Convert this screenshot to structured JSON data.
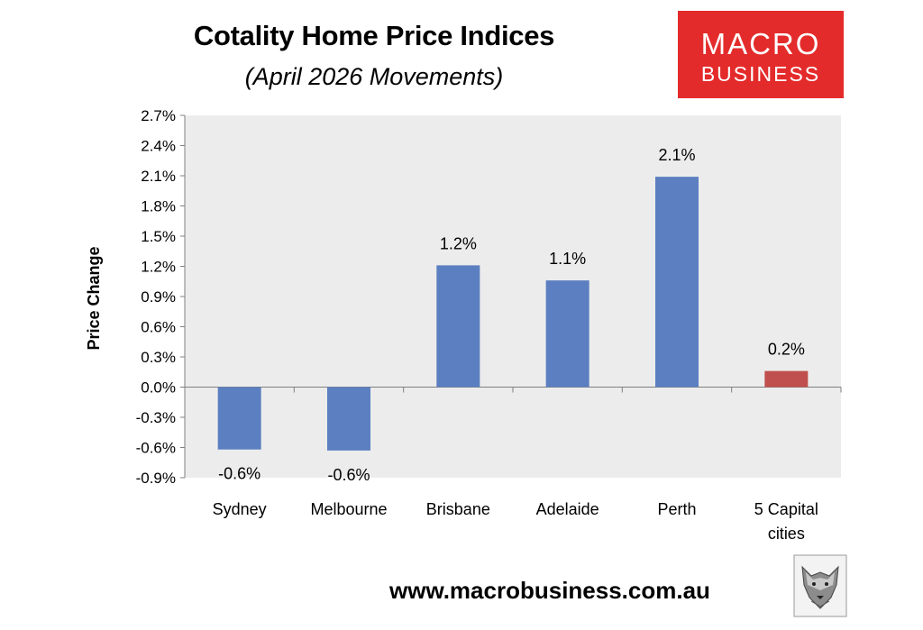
{
  "header": {
    "title": "Cotality Home Price Indices",
    "subtitle": "(April 2026 Movements)"
  },
  "logo": {
    "line1": "MACRO",
    "line2": "BUSINESS",
    "icon": "wolf-head-icon"
  },
  "footer": {
    "url": "www.macrobusiness.com.au"
  },
  "chart_data": {
    "type": "bar",
    "ylabel": "Price Change",
    "xlabel": "",
    "categories": [
      [
        "Sydney"
      ],
      [
        "Melbourne"
      ],
      [
        "Brisbane"
      ],
      [
        "Adelaide"
      ],
      [
        "Perth"
      ],
      [
        "5 Capital",
        "cities"
      ]
    ],
    "values": [
      -0.62,
      -0.63,
      1.21,
      1.06,
      2.09,
      0.16
    ],
    "data_labels": [
      "-0.6%",
      "-0.6%",
      "1.2%",
      "1.1%",
      "2.1%",
      "0.2%"
    ],
    "ylim": [
      -0.9,
      2.7
    ],
    "yticks": [
      -0.9,
      -0.6,
      -0.3,
      0.0,
      0.3,
      0.6,
      0.9,
      1.2,
      1.5,
      1.8,
      2.1,
      2.4,
      2.7
    ],
    "ytick_labels": [
      "-0.9%",
      "-0.6%",
      "-0.3%",
      "0.0%",
      "0.3%",
      "0.6%",
      "0.9%",
      "1.2%",
      "1.5%",
      "1.8%",
      "2.1%",
      "2.4%",
      "2.7%"
    ],
    "grid": false,
    "plot_background": "#ececec",
    "bar_colors": [
      "#5b7fc0",
      "#5b7fc0",
      "#5b7fc0",
      "#5b7fc0",
      "#5b7fc0",
      "#c0504d"
    ]
  }
}
